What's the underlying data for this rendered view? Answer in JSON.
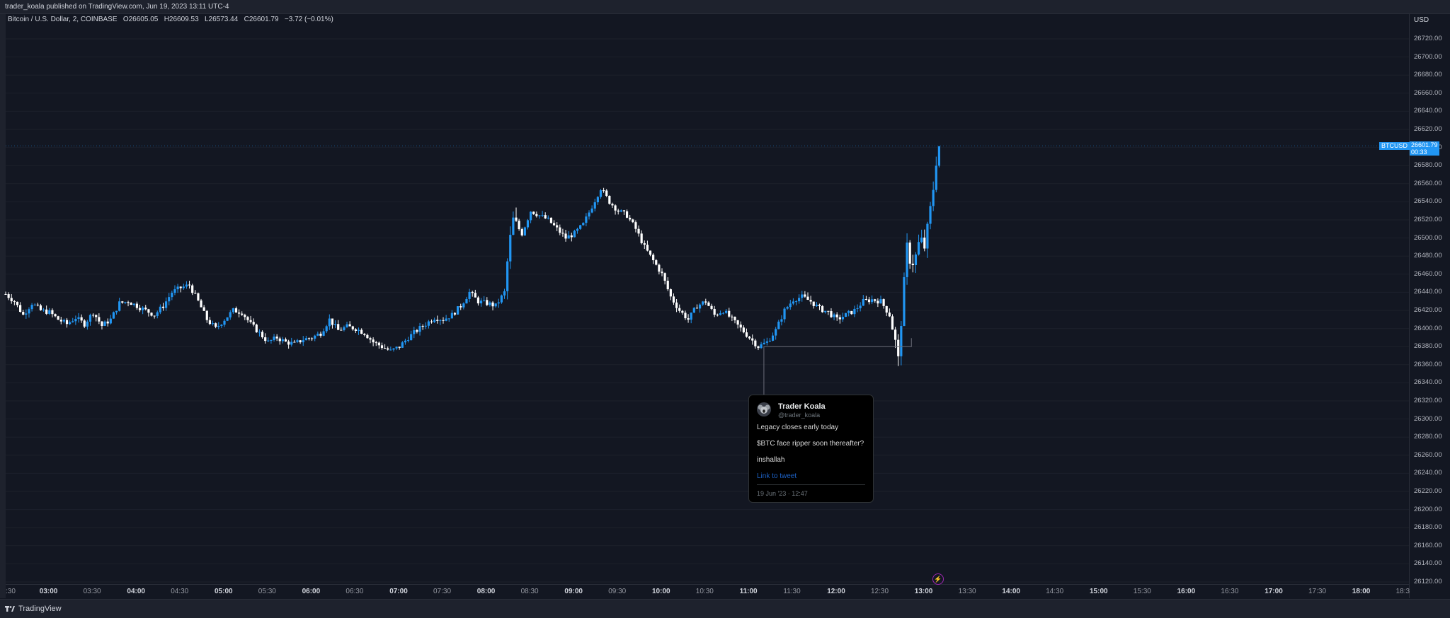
{
  "header": {
    "published_text": "trader_koala published on TradingView.com, Jun 19, 2023 13:11 UTC-4"
  },
  "legend": {
    "symbol": "Bitcoin / U.S. Dollar, 2, COINBASE",
    "open_label": "O",
    "open": "26605.05",
    "high_label": "H",
    "high": "26609.53",
    "low_label": "L",
    "low": "26573.44",
    "close_label": "C",
    "close": "26601.79",
    "change": "−3.72 (−0.01%)"
  },
  "price_axis": {
    "currency": "USD",
    "current_symbol": "BTCUSD",
    "current_price": "26601.79",
    "countdown": "00:33"
  },
  "tweet": {
    "name": "Trader Koala",
    "handle": "@trader_koala",
    "line1": "Legacy closes early today",
    "line2": "$BTC face ripper soon thereafter?",
    "line3": "inshallah",
    "link": "Link to tweet",
    "date": "19 Jun '23 · 12:47"
  },
  "footer": {
    "brand": "TradingView"
  },
  "colors": {
    "background": "#131722",
    "up_candle": "#2196f3",
    "down_candle": "#ffffff",
    "grid": "#1c202b",
    "price_tag": "#2196f3"
  },
  "icons": {
    "bolt": "lightning-bolt-icon",
    "logo": "tradingview-logo-icon"
  },
  "chart_data": {
    "type": "candlestick",
    "title": "Bitcoin / U.S. Dollar, 2, COINBASE",
    "ylim": [
      26110,
      26730
    ],
    "y_ticks": [
      "26120.00",
      "26140.00",
      "26160.00",
      "26180.00",
      "26200.00",
      "26220.00",
      "26240.00",
      "26260.00",
      "26280.00",
      "26300.00",
      "26320.00",
      "26340.00",
      "26360.00",
      "26380.00",
      "26400.00",
      "26420.00",
      "26440.00",
      "26460.00",
      "26480.00",
      "26500.00",
      "26520.00",
      "26540.00",
      "26560.00",
      "26580.00",
      "26600.00",
      "26620.00",
      "26640.00",
      "26660.00",
      "26680.00",
      "26700.00",
      "26720.00"
    ],
    "x_ticks": [
      {
        "label": ":30",
        "bold": false
      },
      {
        "label": "03:00",
        "bold": true
      },
      {
        "label": "03:30",
        "bold": false
      },
      {
        "label": "04:00",
        "bold": true
      },
      {
        "label": "04:30",
        "bold": false
      },
      {
        "label": "05:00",
        "bold": true
      },
      {
        "label": "05:30",
        "bold": false
      },
      {
        "label": "06:00",
        "bold": true
      },
      {
        "label": "06:30",
        "bold": false
      },
      {
        "label": "07:00",
        "bold": true
      },
      {
        "label": "07:30",
        "bold": false
      },
      {
        "label": "08:00",
        "bold": true
      },
      {
        "label": "08:30",
        "bold": false
      },
      {
        "label": "09:00",
        "bold": true
      },
      {
        "label": "09:30",
        "bold": false
      },
      {
        "label": "10:00",
        "bold": true
      },
      {
        "label": "10:30",
        "bold": false
      },
      {
        "label": "11:00",
        "bold": true
      },
      {
        "label": "11:30",
        "bold": false
      },
      {
        "label": "12:00",
        "bold": true
      },
      {
        "label": "12:30",
        "bold": false
      },
      {
        "label": "13:00",
        "bold": true
      },
      {
        "label": "13:30",
        "bold": false
      },
      {
        "label": "14:00",
        "bold": true
      },
      {
        "label": "14:30",
        "bold": false
      },
      {
        "label": "15:00",
        "bold": true
      },
      {
        "label": "15:30",
        "bold": false
      },
      {
        "label": "16:00",
        "bold": true
      },
      {
        "label": "16:30",
        "bold": false
      },
      {
        "label": "17:00",
        "bold": true
      },
      {
        "label": "17:30",
        "bold": false
      },
      {
        "label": "18:00",
        "bold": true
      },
      {
        "label": "18:3",
        "bold": false
      }
    ],
    "x_tick_start_hour": 2.5,
    "x_tick_step_hours": 0.5,
    "x_start_hour": 2.5,
    "candle_interval_minutes": 2,
    "price_path": [
      [
        2.5,
        26438
      ],
      [
        2.6,
        26430
      ],
      [
        2.7,
        26415
      ],
      [
        2.8,
        26428
      ],
      [
        2.9,
        26420
      ],
      [
        3.0,
        26418
      ],
      [
        3.1,
        26410
      ],
      [
        3.2,
        26405
      ],
      [
        3.3,
        26412
      ],
      [
        3.4,
        26405
      ],
      [
        3.5,
        26418
      ],
      [
        3.6,
        26403
      ],
      [
        3.7,
        26410
      ],
      [
        3.8,
        26428
      ],
      [
        3.9,
        26430
      ],
      [
        4.0,
        26425
      ],
      [
        4.1,
        26420
      ],
      [
        4.2,
        26415
      ],
      [
        4.3,
        26425
      ],
      [
        4.4,
        26440
      ],
      [
        4.5,
        26445
      ],
      [
        4.6,
        26448
      ],
      [
        4.7,
        26430
      ],
      [
        4.8,
        26410
      ],
      [
        4.9,
        26400
      ],
      [
        5.0,
        26410
      ],
      [
        5.1,
        26420
      ],
      [
        5.2,
        26418
      ],
      [
        5.3,
        26405
      ],
      [
        5.4,
        26395
      ],
      [
        5.5,
        26385
      ],
      [
        5.6,
        26390
      ],
      [
        5.7,
        26385
      ],
      [
        5.8,
        26383
      ],
      [
        5.9,
        26388
      ],
      [
        6.0,
        26390
      ],
      [
        6.1,
        26395
      ],
      [
        6.2,
        26410
      ],
      [
        6.3,
        26398
      ],
      [
        6.4,
        26402
      ],
      [
        6.5,
        26400
      ],
      [
        6.6,
        26395
      ],
      [
        6.7,
        26385
      ],
      [
        6.8,
        26380
      ],
      [
        6.9,
        26375
      ],
      [
        7.0,
        26380
      ],
      [
        7.1,
        26390
      ],
      [
        7.2,
        26398
      ],
      [
        7.3,
        26405
      ],
      [
        7.4,
        26412
      ],
      [
        7.5,
        26410
      ],
      [
        7.6,
        26415
      ],
      [
        7.7,
        26425
      ],
      [
        7.8,
        26440
      ],
      [
        7.9,
        26430
      ],
      [
        8.0,
        26428
      ],
      [
        8.1,
        26425
      ],
      [
        8.2,
        26440
      ],
      [
        8.25,
        26490
      ],
      [
        8.3,
        26520
      ],
      [
        8.4,
        26505
      ],
      [
        8.5,
        26530
      ],
      [
        8.6,
        26525
      ],
      [
        8.7,
        26520
      ],
      [
        8.8,
        26510
      ],
      [
        8.9,
        26500
      ],
      [
        9.0,
        26505
      ],
      [
        9.1,
        26515
      ],
      [
        9.2,
        26535
      ],
      [
        9.3,
        26555
      ],
      [
        9.4,
        26540
      ],
      [
        9.5,
        26530
      ],
      [
        9.6,
        26525
      ],
      [
        9.7,
        26510
      ],
      [
        9.8,
        26490
      ],
      [
        9.9,
        26475
      ],
      [
        10.0,
        26460
      ],
      [
        10.1,
        26435
      ],
      [
        10.2,
        26420
      ],
      [
        10.3,
        26410
      ],
      [
        10.4,
        26425
      ],
      [
        10.5,
        26430
      ],
      [
        10.6,
        26415
      ],
      [
        10.7,
        26420
      ],
      [
        10.8,
        26410
      ],
      [
        10.9,
        26400
      ],
      [
        11.0,
        26390
      ],
      [
        11.1,
        26380
      ],
      [
        11.2,
        26385
      ],
      [
        11.3,
        26398
      ],
      [
        11.4,
        26420
      ],
      [
        11.5,
        26432
      ],
      [
        11.6,
        26435
      ],
      [
        11.7,
        26430
      ],
      [
        11.8,
        26422
      ],
      [
        11.9,
        26418
      ],
      [
        12.0,
        26410
      ],
      [
        12.1,
        26415
      ],
      [
        12.2,
        26420
      ],
      [
        12.3,
        26430
      ],
      [
        12.4,
        26432
      ],
      [
        12.5,
        26430
      ],
      [
        12.6,
        26415
      ],
      [
        12.65,
        26395
      ],
      [
        12.7,
        26365
      ],
      [
        12.75,
        26430
      ],
      [
        12.8,
        26490
      ],
      [
        12.85,
        26470
      ],
      [
        12.9,
        26480
      ],
      [
        12.95,
        26500
      ],
      [
        13.0,
        26490
      ],
      [
        13.05,
        26520
      ],
      [
        13.1,
        26555
      ],
      [
        13.15,
        26600
      ],
      [
        13.17,
        26602
      ]
    ],
    "annotation": {
      "type": "callout",
      "x_hour": 12.2,
      "y_price": 26380
    }
  }
}
